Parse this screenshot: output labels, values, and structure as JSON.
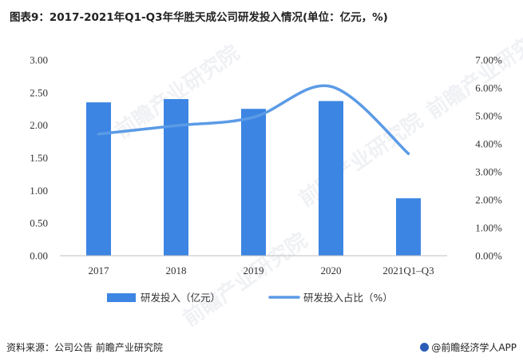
{
  "title": "图表9：2017-2021年Q1-Q3年华胜天成公司研发投入情况(单位：亿元，%)",
  "footer": {
    "source": "资料来源：公司公告 前瞻产业研究院",
    "brand": "@前瞻经济学人APP"
  },
  "watermark": "前瞻产业研究院",
  "colors": {
    "bar": "#3c85e3",
    "line": "#5b9be6"
  },
  "chart_data": {
    "type": "bar",
    "categories": [
      "2017",
      "2018",
      "2019",
      "2020",
      "2021Q1–Q3"
    ],
    "series": [
      {
        "name": "研发投入（亿元）",
        "type": "bar",
        "axis": "left",
        "values": [
          2.35,
          2.4,
          2.25,
          2.37,
          0.88
        ]
      },
      {
        "name": "研发投入占比（%）",
        "type": "line",
        "axis": "right",
        "values": [
          4.35,
          4.65,
          4.95,
          6.05,
          3.65
        ]
      }
    ],
    "y_left": {
      "min": 0,
      "max": 3,
      "ticks": [
        "0.00",
        "0.50",
        "1.00",
        "1.50",
        "2.00",
        "2.50",
        "3.00"
      ]
    },
    "y_right": {
      "min": 0,
      "max": 7,
      "ticks": [
        "0.00%",
        "1.00%",
        "2.00%",
        "3.00%",
        "4.00%",
        "5.00%",
        "6.00%",
        "7.00%"
      ]
    },
    "legend_position": "bottom",
    "grid": false
  }
}
